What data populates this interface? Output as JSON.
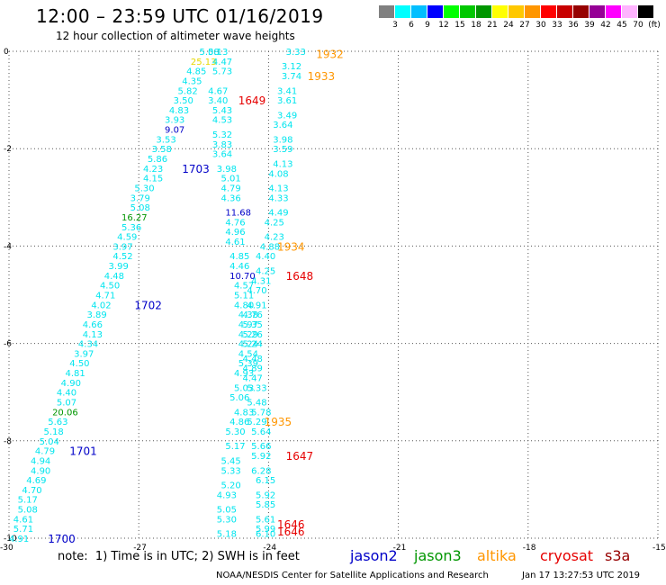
{
  "header": {
    "title": "12:00 – 23:59 UTC 01/16/2019",
    "subtitle": "12 hour collection of altimeter wave heights"
  },
  "colorbar": {
    "labels": [
      "3",
      "6",
      "9",
      "12",
      "15",
      "18",
      "21",
      "24",
      "27",
      "30",
      "33",
      "36",
      "39",
      "42",
      "45",
      "70",
      "(ft)"
    ],
    "colors": [
      "#808080",
      "#00ffff",
      "#00bfff",
      "#0000ff",
      "#00ff00",
      "#00c800",
      "#009600",
      "#ffff00",
      "#ffc800",
      "#ff9600",
      "#ff0000",
      "#c80000",
      "#960000",
      "#960096",
      "#ff00ff",
      "#ffb4ff",
      "#000000"
    ]
  },
  "footer": {
    "note": "note:  1) Time is in UTC; 2) SWH is in feet",
    "legend": [
      {
        "name": "jason2",
        "color": "#0000c8"
      },
      {
        "name": "jason3",
        "color": "#009600"
      },
      {
        "name": "altika",
        "color": "#ff9600"
      },
      {
        "name": "cryosat",
        "color": "#e60000"
      },
      {
        "name": "s3a",
        "color": "#960000"
      }
    ],
    "credit": "NOAA/NESDIS Center for Satellite Applications and Research",
    "timestamp": "Jan 17 13:27:53 UTC 2019"
  },
  "chart_data": {
    "type": "scatter",
    "xlim": [
      -30,
      -15
    ],
    "ylim": [
      -10,
      0
    ],
    "xticks": [
      "-30",
      "-27",
      "-24",
      "-21",
      "-18",
      "-15"
    ],
    "yticks": [
      "0",
      "-2",
      "-4",
      "-6",
      "-8",
      "-10"
    ],
    "grid": true,
    "track_A": [
      {
        "x": -25.6,
        "y": -0.0,
        "v": "5.08"
      },
      {
        "x": -25.4,
        "y": -0.0,
        "v": "5.13"
      },
      {
        "x": -25.8,
        "y": -0.2,
        "v": "25.13"
      },
      {
        "x": -25.3,
        "y": -0.2,
        "v": "4.47"
      },
      {
        "x": -25.9,
        "y": -0.4,
        "v": "4.85"
      },
      {
        "x": -25.3,
        "y": -0.4,
        "v": "5.73"
      },
      {
        "x": -26.0,
        "y": -0.6,
        "v": "4.35"
      },
      {
        "x": -26.1,
        "y": -0.8,
        "v": "5.82"
      },
      {
        "x": -25.4,
        "y": -0.8,
        "v": "4.67"
      },
      {
        "x": -26.2,
        "y": -1.0,
        "v": "3.50"
      },
      {
        "x": -25.4,
        "y": -1.0,
        "v": "3.40"
      },
      {
        "x": -26.3,
        "y": -1.2,
        "v": "4.83"
      },
      {
        "x": -25.3,
        "y": -1.2,
        "v": "5.43"
      },
      {
        "x": -26.4,
        "y": -1.4,
        "v": "3.93"
      },
      {
        "x": -25.3,
        "y": -1.4,
        "v": "4.53"
      },
      {
        "x": -26.4,
        "y": -1.6,
        "v": "9.07"
      },
      {
        "x": -25.3,
        "y": -1.7,
        "v": "5.32"
      },
      {
        "x": -26.6,
        "y": -1.8,
        "v": "3.53"
      },
      {
        "x": -25.3,
        "y": -1.9,
        "v": "3.83"
      },
      {
        "x": -26.7,
        "y": -2.0,
        "v": "3.58"
      },
      {
        "x": -25.3,
        "y": -2.1,
        "v": "3.64"
      },
      {
        "x": -26.8,
        "y": -2.2,
        "v": "5.86"
      },
      {
        "x": -26.9,
        "y": -2.4,
        "v": "4.23"
      },
      {
        "x": -25.2,
        "y": -2.4,
        "v": "3.98"
      },
      {
        "x": -26.9,
        "y": -2.6,
        "v": "4.15"
      },
      {
        "x": -25.1,
        "y": -2.6,
        "v": "5.01"
      },
      {
        "x": -27.1,
        "y": -2.8,
        "v": "5.30"
      },
      {
        "x": -25.1,
        "y": -2.8,
        "v": "4.79"
      },
      {
        "x": -27.2,
        "y": -3.0,
        "v": "3.79"
      },
      {
        "x": -25.1,
        "y": -3.0,
        "v": "4.36"
      },
      {
        "x": -27.2,
        "y": -3.2,
        "v": "5.08"
      },
      {
        "x": -25.0,
        "y": -3.3,
        "v": "11.68"
      },
      {
        "x": -27.4,
        "y": -3.4,
        "v": "16.27"
      },
      {
        "x": -25.0,
        "y": -3.5,
        "v": "4.76"
      },
      {
        "x": -27.4,
        "y": -3.6,
        "v": "5.36"
      },
      {
        "x": -25.0,
        "y": -3.7,
        "v": "4.96"
      },
      {
        "x": -27.5,
        "y": -3.8,
        "v": "4.59"
      },
      {
        "x": -25.0,
        "y": -3.9,
        "v": "4.61"
      },
      {
        "x": -27.6,
        "y": -4.0,
        "v": "3.97"
      },
      {
        "x": -27.6,
        "y": -4.2,
        "v": "4.52"
      },
      {
        "x": -24.9,
        "y": -4.2,
        "v": "4.85"
      },
      {
        "x": -27.7,
        "y": -4.4,
        "v": "3.99"
      },
      {
        "x": -24.9,
        "y": -4.4,
        "v": "4.46"
      },
      {
        "x": -27.8,
        "y": -4.6,
        "v": "4.48"
      },
      {
        "x": -24.9,
        "y": -4.6,
        "v": "10.70"
      },
      {
        "x": -27.9,
        "y": -4.8,
        "v": "4.50"
      },
      {
        "x": -24.8,
        "y": -4.8,
        "v": "4.57"
      },
      {
        "x": -28.0,
        "y": -5.0,
        "v": "4.71"
      },
      {
        "x": -24.8,
        "y": -5.0,
        "v": "5.11"
      },
      {
        "x": -28.1,
        "y": -5.2,
        "v": "4.02"
      },
      {
        "x": -24.8,
        "y": -5.2,
        "v": "4.80"
      },
      {
        "x": -28.2,
        "y": -5.4,
        "v": "3.89"
      },
      {
        "x": -24.7,
        "y": -5.4,
        "v": "4.38"
      },
      {
        "x": -28.3,
        "y": -5.6,
        "v": "4.66"
      },
      {
        "x": -24.7,
        "y": -5.6,
        "v": "4.97"
      },
      {
        "x": -28.3,
        "y": -5.8,
        "v": "4.13"
      },
      {
        "x": -24.7,
        "y": -5.8,
        "v": "4.29"
      },
      {
        "x": -28.4,
        "y": -6.0,
        "v": "4.34"
      },
      {
        "x": -24.7,
        "y": -6.0,
        "v": "4.24"
      },
      {
        "x": -28.5,
        "y": -6.2,
        "v": "3.97"
      },
      {
        "x": -24.7,
        "y": -6.2,
        "v": "4.54"
      },
      {
        "x": -28.6,
        "y": -6.4,
        "v": "4.50"
      },
      {
        "x": -24.7,
        "y": -6.4,
        "v": "5.39"
      },
      {
        "x": -28.7,
        "y": -6.6,
        "v": "4.81"
      },
      {
        "x": -24.8,
        "y": -6.6,
        "v": "4.93"
      },
      {
        "x": -28.8,
        "y": -6.8,
        "v": "4.90"
      },
      {
        "x": -24.8,
        "y": -6.9,
        "v": "5.03"
      },
      {
        "x": -28.9,
        "y": -7.0,
        "v": "4.40"
      },
      {
        "x": -24.9,
        "y": -7.1,
        "v": "5.06"
      },
      {
        "x": -28.9,
        "y": -7.2,
        "v": "5.07"
      },
      {
        "x": -24.8,
        "y": -7.4,
        "v": "4.83"
      },
      {
        "x": -29.0,
        "y": -7.4,
        "v": "20.06"
      },
      {
        "x": -24.9,
        "y": -7.6,
        "v": "4.86"
      },
      {
        "x": -29.1,
        "y": -7.6,
        "v": "5.63"
      },
      {
        "x": -25.0,
        "y": -7.8,
        "v": "5.30"
      },
      {
        "x": -29.2,
        "y": -7.8,
        "v": "5.18"
      },
      {
        "x": -25.0,
        "y": -8.1,
        "v": "5.17"
      },
      {
        "x": -29.3,
        "y": -8.0,
        "v": "5.04"
      },
      {
        "x": -25.1,
        "y": -8.4,
        "v": "5.45"
      },
      {
        "x": -29.4,
        "y": -8.2,
        "v": "4.79"
      },
      {
        "x": -25.1,
        "y": -8.6,
        "v": "5.33"
      },
      {
        "x": -29.5,
        "y": -8.4,
        "v": "4.94"
      },
      {
        "x": -25.1,
        "y": -8.9,
        "v": "5.20"
      },
      {
        "x": -29.5,
        "y": -8.6,
        "v": "4.90"
      },
      {
        "x": -25.2,
        "y": -9.1,
        "v": "4.93"
      },
      {
        "x": -29.6,
        "y": -8.8,
        "v": "4.69"
      },
      {
        "x": -25.2,
        "y": -9.4,
        "v": "5.05"
      },
      {
        "x": -29.7,
        "y": -9.0,
        "v": "4.70"
      },
      {
        "x": -25.2,
        "y": -9.6,
        "v": "5.30"
      },
      {
        "x": -29.8,
        "y": -9.2,
        "v": "5.17"
      },
      {
        "x": -25.2,
        "y": -9.9,
        "v": "5.18"
      },
      {
        "x": -29.8,
        "y": -9.4,
        "v": "5.08"
      },
      {
        "x": -29.9,
        "y": -9.6,
        "v": "4.61"
      },
      {
        "x": -29.9,
        "y": -9.8,
        "v": "5.71"
      },
      {
        "x": -30.0,
        "y": -10.0,
        "v": "4.91"
      }
    ],
    "track_B": [
      {
        "x": -23.6,
        "y": -0.0,
        "v": "3.33"
      },
      {
        "x": -23.7,
        "y": -0.3,
        "v": "3.12"
      },
      {
        "x": -23.7,
        "y": -0.5,
        "v": "3.74"
      },
      {
        "x": -23.8,
        "y": -0.8,
        "v": "3.41"
      },
      {
        "x": -23.8,
        "y": -1.0,
        "v": "3.61"
      },
      {
        "x": -23.8,
        "y": -1.3,
        "v": "3.49"
      },
      {
        "x": -23.9,
        "y": -1.5,
        "v": "3.64"
      },
      {
        "x": -23.9,
        "y": -1.8,
        "v": "3.98"
      },
      {
        "x": -23.9,
        "y": -2.0,
        "v": "3.59"
      },
      {
        "x": -23.9,
        "y": -2.3,
        "v": "4.13"
      },
      {
        "x": -24.0,
        "y": -2.5,
        "v": "4.08"
      },
      {
        "x": -24.0,
        "y": -2.8,
        "v": "4.13"
      },
      {
        "x": -24.0,
        "y": -3.0,
        "v": "4.33"
      },
      {
        "x": -24.0,
        "y": -3.3,
        "v": "4.49"
      },
      {
        "x": -24.1,
        "y": -3.5,
        "v": "4.25"
      },
      {
        "x": -24.1,
        "y": -3.8,
        "v": "4.23"
      },
      {
        "x": -24.2,
        "y": -4.0,
        "v": "4.88"
      },
      {
        "x": -24.3,
        "y": -4.2,
        "v": "4.40"
      },
      {
        "x": -24.3,
        "y": -4.5,
        "v": "4.25"
      },
      {
        "x": -24.4,
        "y": -4.7,
        "v": "4.31"
      },
      {
        "x": -24.5,
        "y": -4.9,
        "v": "4.70"
      },
      {
        "x": -24.5,
        "y": -5.2,
        "v": "4.91"
      },
      {
        "x": -24.6,
        "y": -5.4,
        "v": "4.76"
      },
      {
        "x": -24.6,
        "y": -5.6,
        "v": "5.35"
      },
      {
        "x": -24.6,
        "y": -5.8,
        "v": "5.26"
      },
      {
        "x": -24.6,
        "y": -6.0,
        "v": "5.24"
      },
      {
        "x": -24.6,
        "y": -6.3,
        "v": "4.48"
      },
      {
        "x": -24.6,
        "y": -6.5,
        "v": "4.89"
      },
      {
        "x": -24.6,
        "y": -6.7,
        "v": "4.47"
      },
      {
        "x": -24.5,
        "y": -6.9,
        "v": "5.33"
      },
      {
        "x": -24.5,
        "y": -7.2,
        "v": "5.48"
      },
      {
        "x": -24.4,
        "y": -7.4,
        "v": "5.78"
      },
      {
        "x": -24.5,
        "y": -7.6,
        "v": "5.29"
      },
      {
        "x": -24.4,
        "y": -7.8,
        "v": "5.64"
      },
      {
        "x": -24.4,
        "y": -8.1,
        "v": "5.66"
      },
      {
        "x": -24.4,
        "y": -8.3,
        "v": "5.92"
      },
      {
        "x": -24.4,
        "y": -8.6,
        "v": "6.28"
      },
      {
        "x": -24.3,
        "y": -8.8,
        "v": "6.15"
      },
      {
        "x": -24.3,
        "y": -9.1,
        "v": "5.92"
      },
      {
        "x": -24.3,
        "y": -9.3,
        "v": "5.85"
      },
      {
        "x": -24.3,
        "y": -9.6,
        "v": "5.61"
      },
      {
        "x": -24.3,
        "y": -9.8,
        "v": "5.99"
      },
      {
        "x": -24.3,
        "y": -9.9,
        "v": "6.10"
      }
    ],
    "time_labels": [
      {
        "x": -22.9,
        "y": -0.05,
        "v": "1932",
        "color": "#ff9600"
      },
      {
        "x": -23.1,
        "y": -0.5,
        "v": "1933",
        "color": "#ff9600"
      },
      {
        "x": -24.7,
        "y": -1.0,
        "v": "1649",
        "color": "#e60000"
      },
      {
        "x": -26.0,
        "y": -2.4,
        "v": "1703",
        "color": "#0000c8"
      },
      {
        "x": -23.8,
        "y": -4.0,
        "v": "1934",
        "color": "#ff9600"
      },
      {
        "x": -23.6,
        "y": -4.6,
        "v": "1648",
        "color": "#e60000"
      },
      {
        "x": -27.1,
        "y": -5.2,
        "v": "1702",
        "color": "#0000c8"
      },
      {
        "x": -24.1,
        "y": -7.6,
        "v": "1935",
        "color": "#ff9600"
      },
      {
        "x": -23.6,
        "y": -8.3,
        "v": "1647",
        "color": "#e60000"
      },
      {
        "x": -28.6,
        "y": -8.2,
        "v": "1701",
        "color": "#0000c8"
      },
      {
        "x": -23.8,
        "y": -9.7,
        "v": "1646",
        "color": "#e60000"
      },
      {
        "x": -23.8,
        "y": -9.85,
        "v": "1646",
        "color": "#e60000"
      },
      {
        "x": -29.1,
        "y": -10.0,
        "v": "1700",
        "color": "#0000c8"
      }
    ]
  }
}
